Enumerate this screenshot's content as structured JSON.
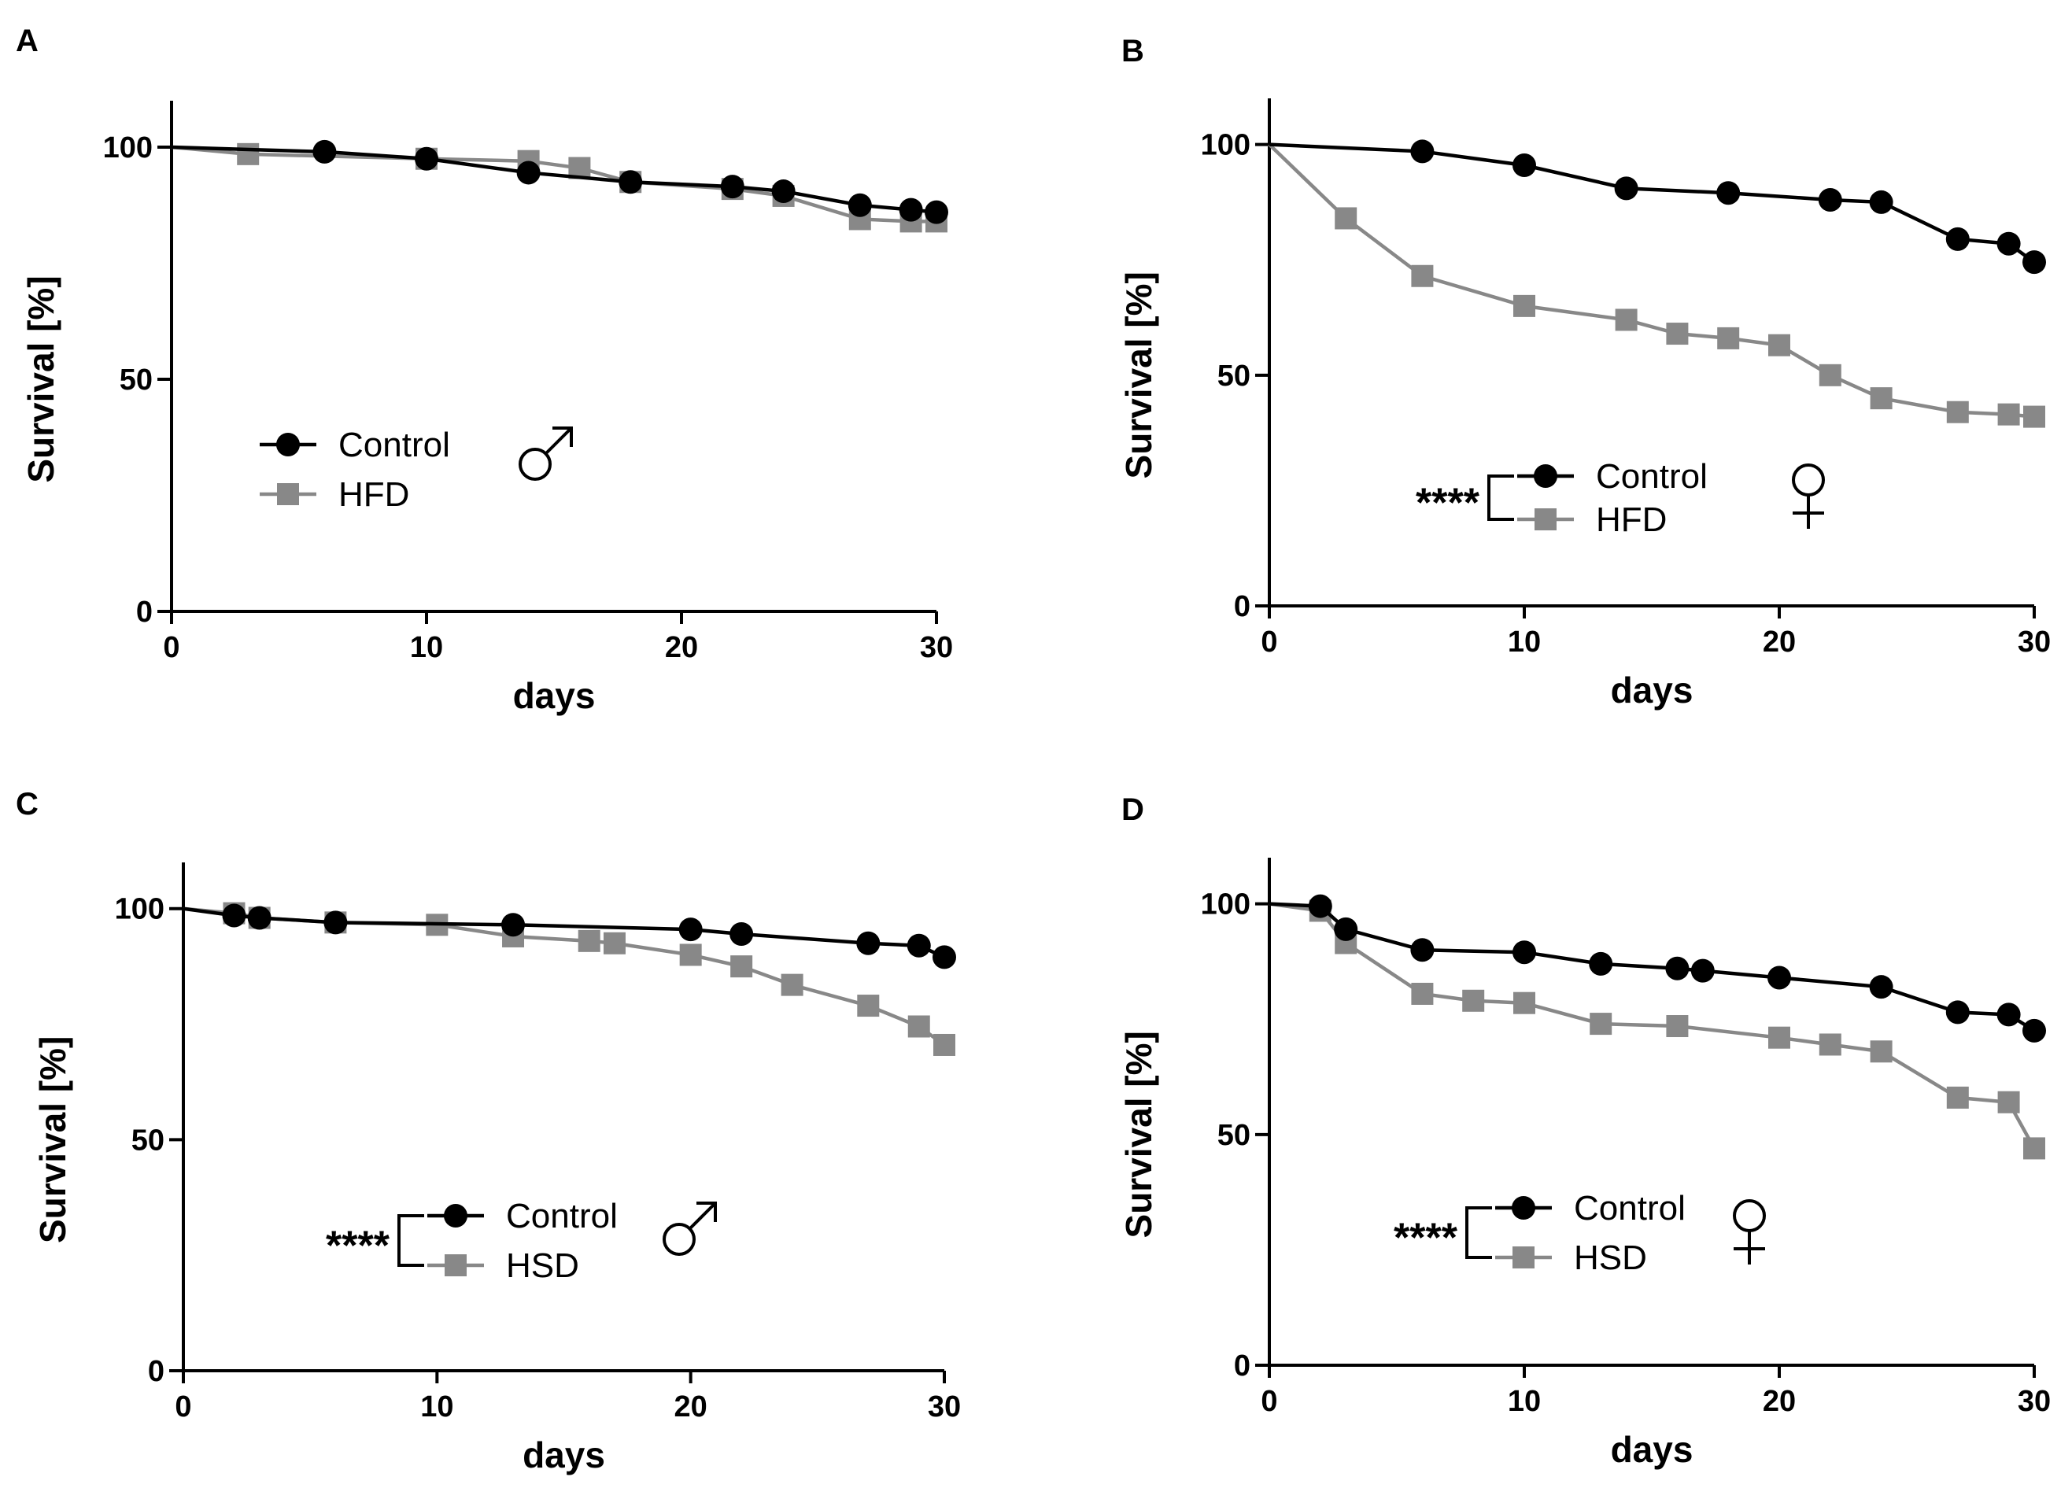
{
  "chart_data": [
    {
      "type": "line",
      "panel": "A",
      "xlabel": "days",
      "ylabel": "Survival [%]",
      "xlim": [
        0,
        30
      ],
      "ylim": [
        0,
        110
      ],
      "xticks": [
        "0",
        "10",
        "20",
        "30"
      ],
      "yticks": [
        "0",
        "50",
        "100"
      ],
      "sex_symbol": "male",
      "significance": "",
      "series": [
        {
          "name": "Control",
          "color": "#000000",
          "marker": "circle",
          "x": [
            0,
            6,
            10,
            14,
            18,
            22,
            24,
            27,
            29,
            30
          ],
          "y": [
            100,
            99,
            97.5,
            94.5,
            92.5,
            91.5,
            90.5,
            87.5,
            86.5,
            86
          ]
        },
        {
          "name": "HFD",
          "color": "#888888",
          "marker": "square",
          "x": [
            0,
            3,
            10,
            14,
            16,
            18,
            22,
            24,
            27,
            29,
            30
          ],
          "y": [
            100,
            98.5,
            97.5,
            97,
            95.5,
            92.5,
            91,
            89.5,
            84.5,
            84,
            84
          ]
        }
      ]
    },
    {
      "type": "line",
      "panel": "B",
      "xlabel": "days",
      "ylabel": "Survival [%]",
      "xlim": [
        0,
        30
      ],
      "ylim": [
        0,
        110
      ],
      "xticks": [
        "0",
        "10",
        "20",
        "30"
      ],
      "yticks": [
        "0",
        "50",
        "100"
      ],
      "sex_symbol": "female",
      "significance": "****",
      "series": [
        {
          "name": "Control",
          "color": "#000000",
          "marker": "circle",
          "x": [
            0,
            6,
            10,
            14,
            18,
            22,
            24,
            27,
            29,
            30
          ],
          "y": [
            100,
            98.5,
            95.5,
            90.5,
            89.5,
            88,
            87.5,
            79.5,
            78.5,
            74.5
          ]
        },
        {
          "name": "HFD",
          "color": "#888888",
          "marker": "square",
          "x": [
            0,
            3,
            6,
            10,
            14,
            16,
            18,
            20,
            22,
            24,
            27,
            29,
            30
          ],
          "y": [
            100,
            84,
            71.5,
            65,
            62,
            59,
            58,
            56.5,
            50,
            45,
            42,
            41.5,
            41
          ]
        }
      ]
    },
    {
      "type": "line",
      "panel": "C",
      "xlabel": "days",
      "ylabel": "Survival [%]",
      "xlim": [
        0,
        30
      ],
      "ylim": [
        0,
        110
      ],
      "xticks": [
        "0",
        "10",
        "20",
        "30"
      ],
      "yticks": [
        "0",
        "50",
        "100"
      ],
      "sex_symbol": "male",
      "significance": "****",
      "series": [
        {
          "name": "Control",
          "color": "#000000",
          "marker": "circle",
          "x": [
            0,
            2,
            3,
            6,
            13,
            20,
            22,
            27,
            29,
            30
          ],
          "y": [
            100,
            98.5,
            98,
            97,
            96.5,
            95.5,
            94.5,
            92.5,
            92,
            89.5
          ]
        },
        {
          "name": "HSD",
          "color": "#888888",
          "marker": "square",
          "x": [
            0,
            2,
            3,
            6,
            10,
            13,
            16,
            17,
            20,
            22,
            24,
            27,
            29,
            30
          ],
          "y": [
            100,
            99,
            98,
            97,
            96.5,
            94,
            93,
            92.5,
            90,
            87.5,
            83.5,
            79,
            74.5,
            70.5
          ]
        }
      ]
    },
    {
      "type": "line",
      "panel": "D",
      "xlabel": "days",
      "ylabel": "Survival [%]",
      "xlim": [
        0,
        30
      ],
      "ylim": [
        0,
        110
      ],
      "xticks": [
        "0",
        "10",
        "20",
        "30"
      ],
      "yticks": [
        "0",
        "50",
        "100"
      ],
      "sex_symbol": "female",
      "significance": "****",
      "series": [
        {
          "name": "Control",
          "color": "#000000",
          "marker": "circle",
          "x": [
            0,
            2,
            3,
            6,
            10,
            13,
            16,
            17,
            20,
            24,
            27,
            29,
            30
          ],
          "y": [
            100,
            99.5,
            94.5,
            90,
            89.5,
            87,
            86,
            85.5,
            84,
            82,
            76.5,
            76,
            72.5
          ]
        },
        {
          "name": "HSD",
          "color": "#888888",
          "marker": "square",
          "x": [
            0,
            2,
            3,
            6,
            8,
            10,
            13,
            16,
            20,
            22,
            24,
            27,
            29,
            30
          ],
          "y": [
            100,
            98.5,
            91.5,
            80.5,
            79,
            78.5,
            74,
            73.5,
            71,
            69.5,
            68,
            58,
            57,
            47
          ]
        }
      ]
    }
  ]
}
